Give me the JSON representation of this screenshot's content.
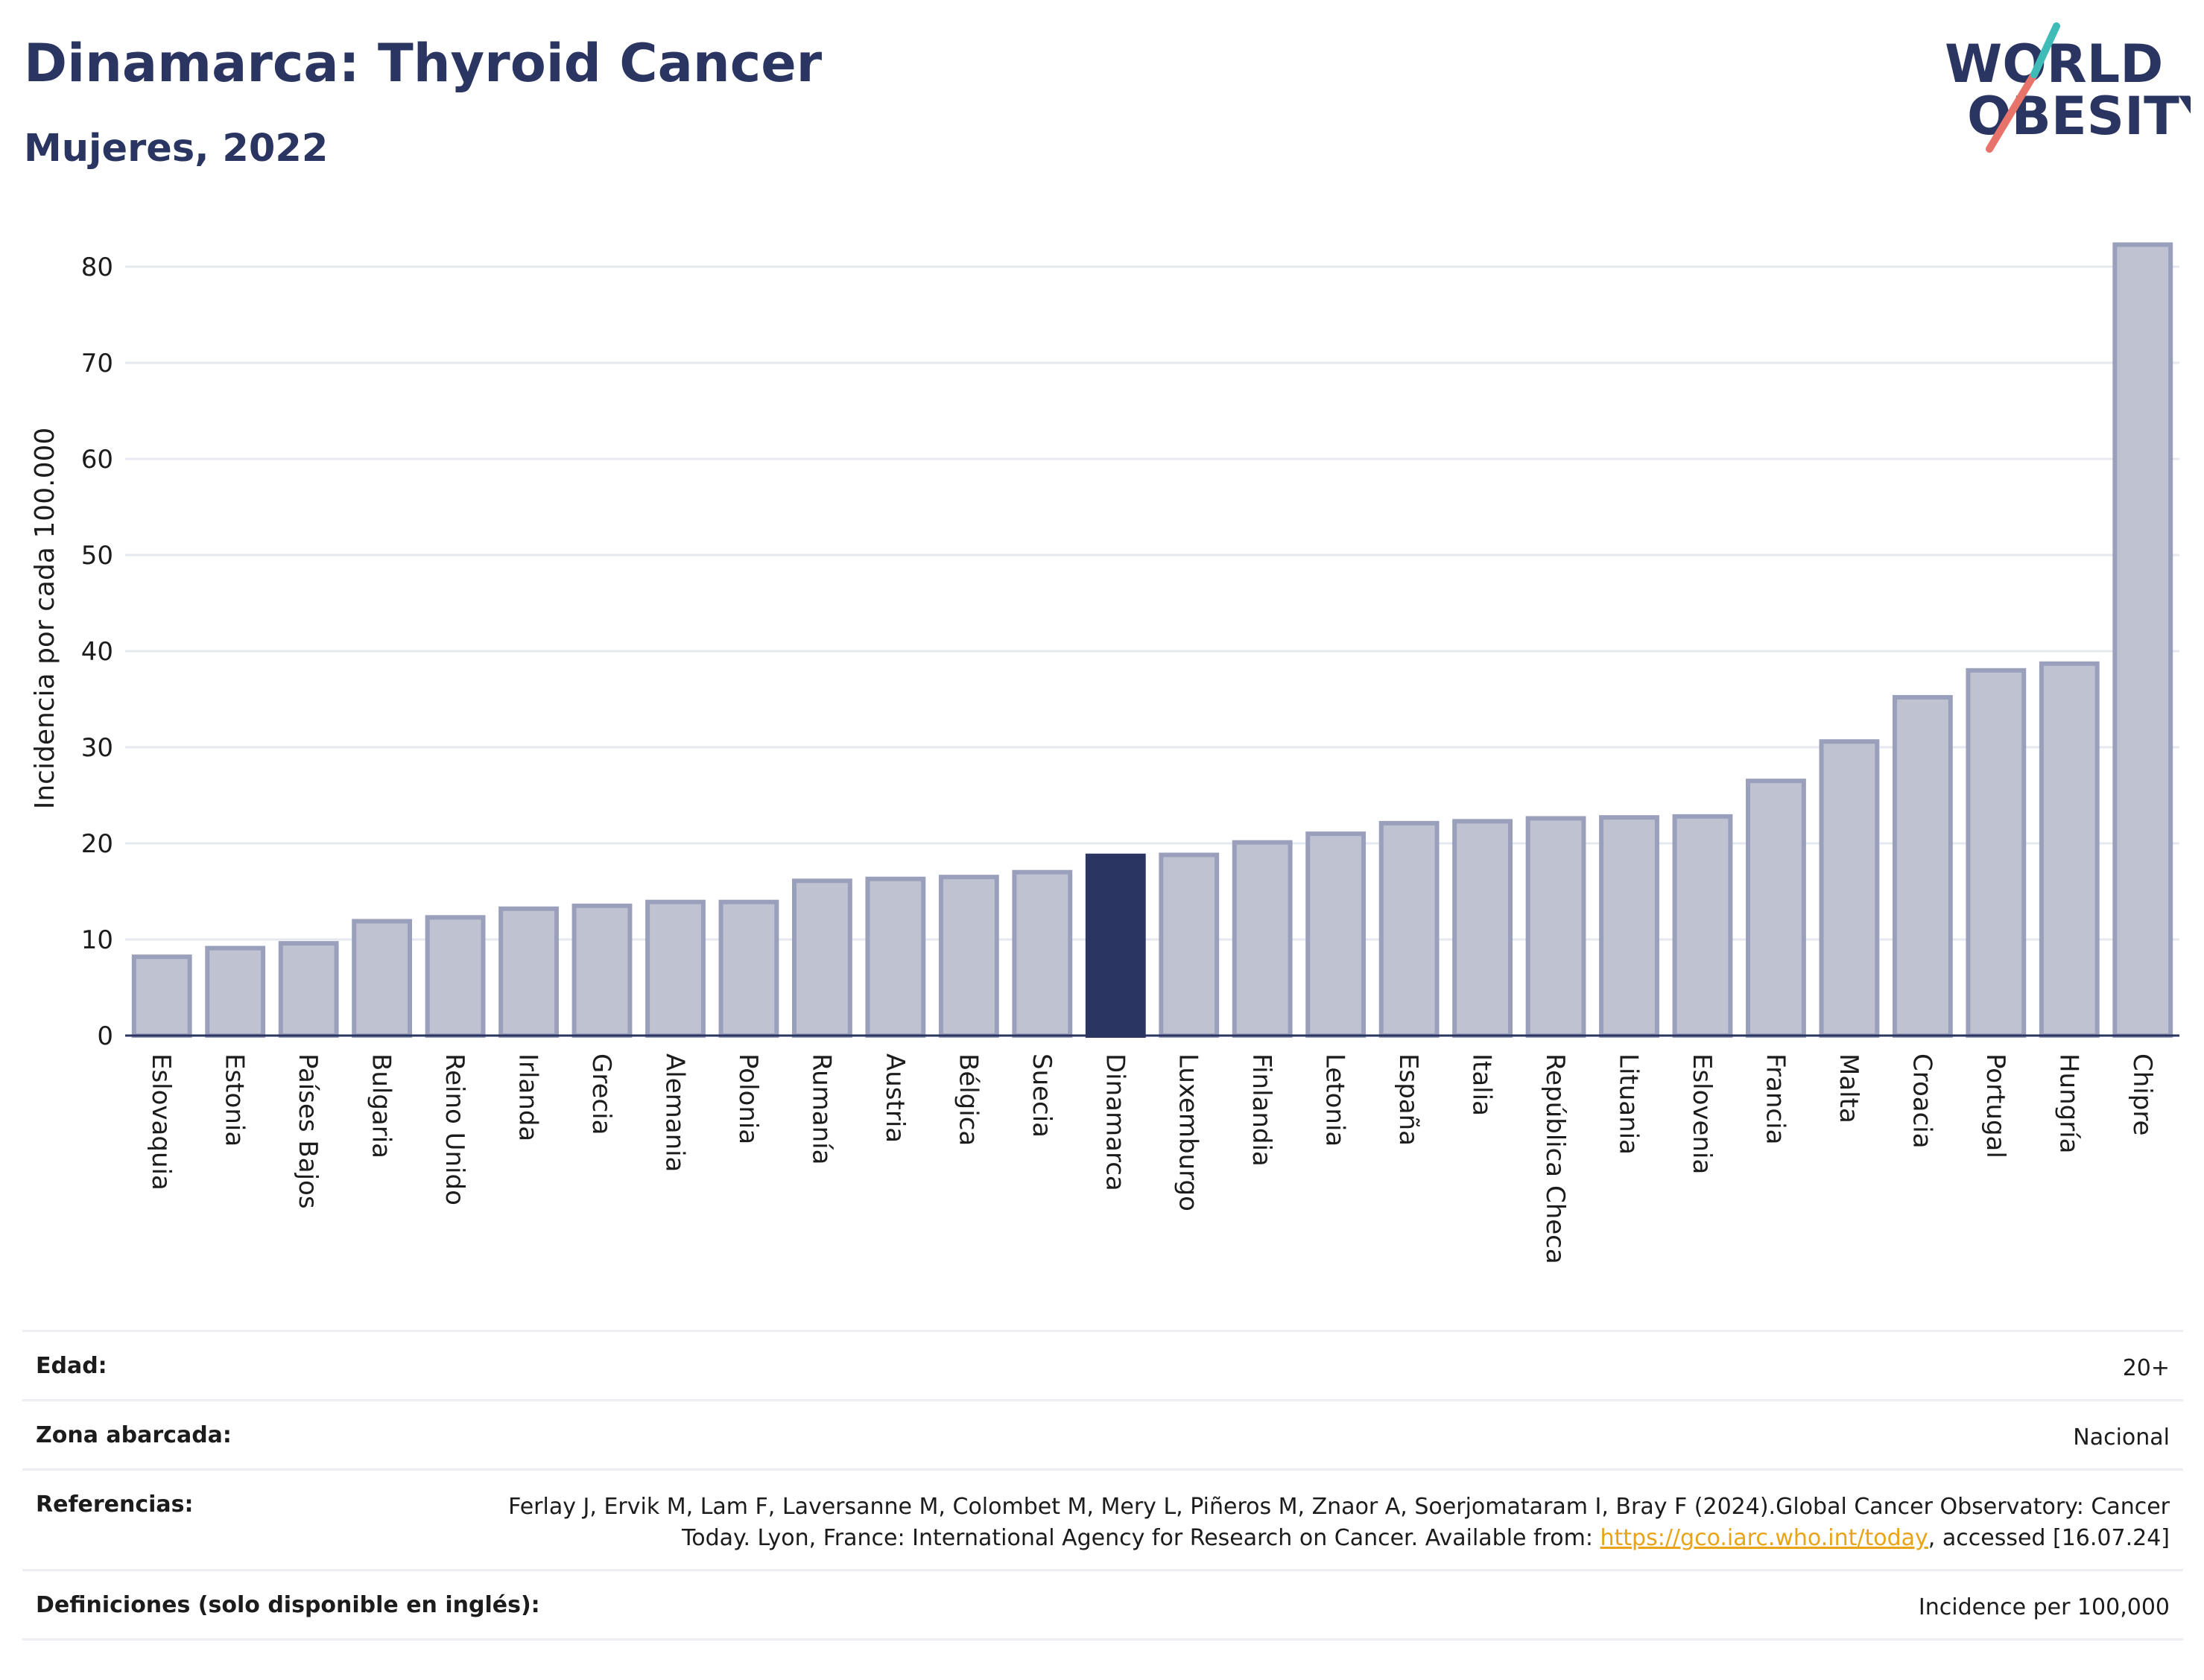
{
  "header": {
    "title": "Dinamarca: Thyroid Cancer",
    "subtitle": "Mujeres, 2022"
  },
  "logo": {
    "line1": "WORLD",
    "line2": "OBESITY"
  },
  "colors": {
    "bar": "#bfc2d0",
    "bar_stroke": "#9aa0bb",
    "highlight": "#2a3561",
    "grid": "#e6e8ef",
    "title": "#2a3561"
  },
  "chart_data": {
    "type": "bar",
    "ylabel": "Incidencia por cada 100.000",
    "xlabel": "",
    "ylim": [
      0,
      85
    ],
    "yticks": [
      0,
      10,
      20,
      30,
      40,
      50,
      60,
      70,
      80
    ],
    "grid": true,
    "highlight": "Dinamarca",
    "categories": [
      "Eslovaquia",
      "Estonia",
      "Países Bajos",
      "Bulgaria",
      "Reino Unido",
      "Irlanda",
      "Grecia",
      "Alemania",
      "Polonia",
      "Rumanía",
      "Austria",
      "Bélgica",
      "Suecia",
      "Dinamarca",
      "Luxemburgo",
      "Finlandia",
      "Letonia",
      "España",
      "Italia",
      "República Checa",
      "Lituania",
      "Eslovenia",
      "Francia",
      "Malta",
      "Croacia",
      "Portugal",
      "Hungría",
      "Chipre"
    ],
    "values": [
      8.2,
      9.1,
      9.6,
      11.9,
      12.3,
      13.2,
      13.5,
      13.9,
      13.9,
      16.1,
      16.3,
      16.5,
      17.0,
      18.7,
      18.8,
      20.1,
      21.0,
      22.1,
      22.3,
      22.6,
      22.7,
      22.8,
      26.5,
      30.6,
      35.2,
      38.0,
      38.7,
      82.3
    ]
  },
  "meta": {
    "age_label": "Edad:",
    "age_value": "20+",
    "zone_label": "Zona abarcada:",
    "zone_value": "Nacional",
    "refs_label": "Referencias:",
    "refs_text": "Ferlay J, Ervik M, Lam F, Laversanne M, Colombet M, Mery L, Piñeros M, Znaor A, Soerjomataram I, Bray F (2024).Global Cancer Observatory: Cancer Today. Lyon, France: International Agency for Research on Cancer. Available from: ",
    "refs_link": "https://gco.iarc.who.int/today",
    "refs_tail": ", accessed [16.07.24]",
    "defs_label": "Definiciones (solo disponible en inglés):",
    "defs_value": "Incidence per 100,000"
  }
}
